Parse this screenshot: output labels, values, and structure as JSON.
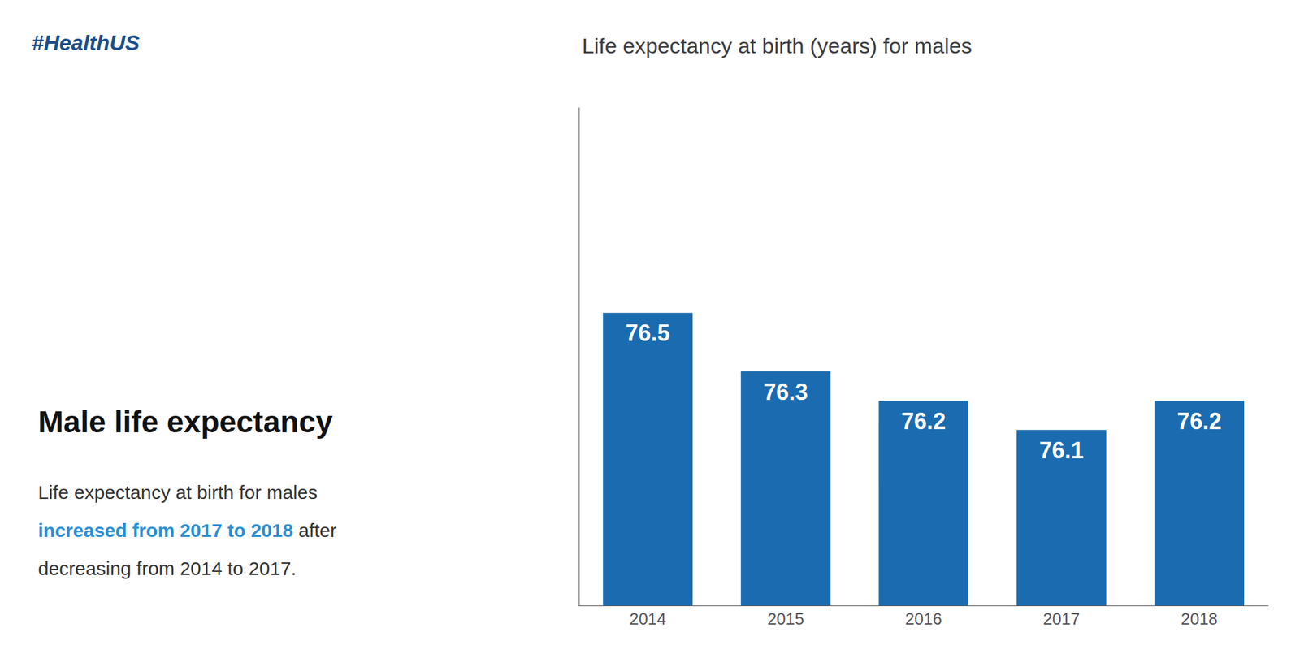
{
  "chart_data": {
    "type": "bar",
    "title": "Life expectancy at birth (years) for males",
    "categories": [
      "2014",
      "2015",
      "2016",
      "2017",
      "2018"
    ],
    "values": [
      76.5,
      76.3,
      76.2,
      76.1,
      76.2
    ],
    "color": "#1b6bb0",
    "ylim": [
      75.5,
      77.2
    ],
    "data_labels": true,
    "tick_labels": "x",
    "grid": false,
    "annotations": [
      {
        "text": "#HealthUS",
        "color": "#1b4f8a"
      },
      {
        "text": "Male life expectancy",
        "color": "#111111"
      },
      {
        "text": "Life expectancy at birth for males",
        "color": "#333333"
      },
      {
        "text": "increased from 2017 to 2018",
        "color": "#2a8fd4"
      },
      {
        "text": "after",
        "color": "#333333"
      },
      {
        "text": "decreasing from 2014 to 2017.",
        "color": "#333333"
      }
    ]
  }
}
